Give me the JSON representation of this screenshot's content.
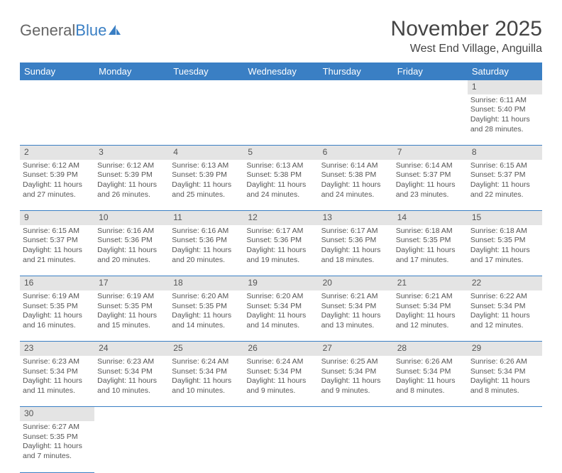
{
  "logo": {
    "text1": "General",
    "text2": "Blue"
  },
  "title": "November 2025",
  "location": "West End Village, Anguilla",
  "header_bg": "#3a7fc4",
  "header_fg": "#ffffff",
  "daynum_bg": "#e4e4e4",
  "border_color": "#3a7fc4",
  "columns": [
    "Sunday",
    "Monday",
    "Tuesday",
    "Wednesday",
    "Thursday",
    "Friday",
    "Saturday"
  ],
  "weeks": [
    {
      "nums": [
        "",
        "",
        "",
        "",
        "",
        "",
        "1"
      ],
      "cells": [
        null,
        null,
        null,
        null,
        null,
        null,
        {
          "sunrise": "Sunrise: 6:11 AM",
          "sunset": "Sunset: 5:40 PM",
          "day1": "Daylight: 11 hours",
          "day2": "and 28 minutes."
        }
      ]
    },
    {
      "nums": [
        "2",
        "3",
        "4",
        "5",
        "6",
        "7",
        "8"
      ],
      "cells": [
        {
          "sunrise": "Sunrise: 6:12 AM",
          "sunset": "Sunset: 5:39 PM",
          "day1": "Daylight: 11 hours",
          "day2": "and 27 minutes."
        },
        {
          "sunrise": "Sunrise: 6:12 AM",
          "sunset": "Sunset: 5:39 PM",
          "day1": "Daylight: 11 hours",
          "day2": "and 26 minutes."
        },
        {
          "sunrise": "Sunrise: 6:13 AM",
          "sunset": "Sunset: 5:39 PM",
          "day1": "Daylight: 11 hours",
          "day2": "and 25 minutes."
        },
        {
          "sunrise": "Sunrise: 6:13 AM",
          "sunset": "Sunset: 5:38 PM",
          "day1": "Daylight: 11 hours",
          "day2": "and 24 minutes."
        },
        {
          "sunrise": "Sunrise: 6:14 AM",
          "sunset": "Sunset: 5:38 PM",
          "day1": "Daylight: 11 hours",
          "day2": "and 24 minutes."
        },
        {
          "sunrise": "Sunrise: 6:14 AM",
          "sunset": "Sunset: 5:37 PM",
          "day1": "Daylight: 11 hours",
          "day2": "and 23 minutes."
        },
        {
          "sunrise": "Sunrise: 6:15 AM",
          "sunset": "Sunset: 5:37 PM",
          "day1": "Daylight: 11 hours",
          "day2": "and 22 minutes."
        }
      ]
    },
    {
      "nums": [
        "9",
        "10",
        "11",
        "12",
        "13",
        "14",
        "15"
      ],
      "cells": [
        {
          "sunrise": "Sunrise: 6:15 AM",
          "sunset": "Sunset: 5:37 PM",
          "day1": "Daylight: 11 hours",
          "day2": "and 21 minutes."
        },
        {
          "sunrise": "Sunrise: 6:16 AM",
          "sunset": "Sunset: 5:36 PM",
          "day1": "Daylight: 11 hours",
          "day2": "and 20 minutes."
        },
        {
          "sunrise": "Sunrise: 6:16 AM",
          "sunset": "Sunset: 5:36 PM",
          "day1": "Daylight: 11 hours",
          "day2": "and 20 minutes."
        },
        {
          "sunrise": "Sunrise: 6:17 AM",
          "sunset": "Sunset: 5:36 PM",
          "day1": "Daylight: 11 hours",
          "day2": "and 19 minutes."
        },
        {
          "sunrise": "Sunrise: 6:17 AM",
          "sunset": "Sunset: 5:36 PM",
          "day1": "Daylight: 11 hours",
          "day2": "and 18 minutes."
        },
        {
          "sunrise": "Sunrise: 6:18 AM",
          "sunset": "Sunset: 5:35 PM",
          "day1": "Daylight: 11 hours",
          "day2": "and 17 minutes."
        },
        {
          "sunrise": "Sunrise: 6:18 AM",
          "sunset": "Sunset: 5:35 PM",
          "day1": "Daylight: 11 hours",
          "day2": "and 17 minutes."
        }
      ]
    },
    {
      "nums": [
        "16",
        "17",
        "18",
        "19",
        "20",
        "21",
        "22"
      ],
      "cells": [
        {
          "sunrise": "Sunrise: 6:19 AM",
          "sunset": "Sunset: 5:35 PM",
          "day1": "Daylight: 11 hours",
          "day2": "and 16 minutes."
        },
        {
          "sunrise": "Sunrise: 6:19 AM",
          "sunset": "Sunset: 5:35 PM",
          "day1": "Daylight: 11 hours",
          "day2": "and 15 minutes."
        },
        {
          "sunrise": "Sunrise: 6:20 AM",
          "sunset": "Sunset: 5:35 PM",
          "day1": "Daylight: 11 hours",
          "day2": "and 14 minutes."
        },
        {
          "sunrise": "Sunrise: 6:20 AM",
          "sunset": "Sunset: 5:34 PM",
          "day1": "Daylight: 11 hours",
          "day2": "and 14 minutes."
        },
        {
          "sunrise": "Sunrise: 6:21 AM",
          "sunset": "Sunset: 5:34 PM",
          "day1": "Daylight: 11 hours",
          "day2": "and 13 minutes."
        },
        {
          "sunrise": "Sunrise: 6:21 AM",
          "sunset": "Sunset: 5:34 PM",
          "day1": "Daylight: 11 hours",
          "day2": "and 12 minutes."
        },
        {
          "sunrise": "Sunrise: 6:22 AM",
          "sunset": "Sunset: 5:34 PM",
          "day1": "Daylight: 11 hours",
          "day2": "and 12 minutes."
        }
      ]
    },
    {
      "nums": [
        "23",
        "24",
        "25",
        "26",
        "27",
        "28",
        "29"
      ],
      "cells": [
        {
          "sunrise": "Sunrise: 6:23 AM",
          "sunset": "Sunset: 5:34 PM",
          "day1": "Daylight: 11 hours",
          "day2": "and 11 minutes."
        },
        {
          "sunrise": "Sunrise: 6:23 AM",
          "sunset": "Sunset: 5:34 PM",
          "day1": "Daylight: 11 hours",
          "day2": "and 10 minutes."
        },
        {
          "sunrise": "Sunrise: 6:24 AM",
          "sunset": "Sunset: 5:34 PM",
          "day1": "Daylight: 11 hours",
          "day2": "and 10 minutes."
        },
        {
          "sunrise": "Sunrise: 6:24 AM",
          "sunset": "Sunset: 5:34 PM",
          "day1": "Daylight: 11 hours",
          "day2": "and 9 minutes."
        },
        {
          "sunrise": "Sunrise: 6:25 AM",
          "sunset": "Sunset: 5:34 PM",
          "day1": "Daylight: 11 hours",
          "day2": "and 9 minutes."
        },
        {
          "sunrise": "Sunrise: 6:26 AM",
          "sunset": "Sunset: 5:34 PM",
          "day1": "Daylight: 11 hours",
          "day2": "and 8 minutes."
        },
        {
          "sunrise": "Sunrise: 6:26 AM",
          "sunset": "Sunset: 5:34 PM",
          "day1": "Daylight: 11 hours",
          "day2": "and 8 minutes."
        }
      ]
    },
    {
      "nums": [
        "30",
        "",
        "",
        "",
        "",
        "",
        ""
      ],
      "cells": [
        {
          "sunrise": "Sunrise: 6:27 AM",
          "sunset": "Sunset: 5:35 PM",
          "day1": "Daylight: 11 hours",
          "day2": "and 7 minutes."
        },
        null,
        null,
        null,
        null,
        null,
        null
      ]
    }
  ]
}
